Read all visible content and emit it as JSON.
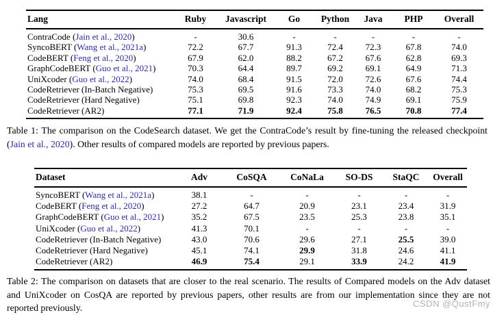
{
  "colors": {
    "citation_blue": "#2b2b9e",
    "text": "#000000",
    "watermark_gray": "#b3b3b3"
  },
  "table1": {
    "columns": [
      "Lang",
      "Ruby",
      "Javascript",
      "Go",
      "Python",
      "Java",
      "PHP",
      "Overall"
    ],
    "rows": [
      {
        "label_prefix": "ContraCode (",
        "label_cite": "Jain et al., 2020",
        "label_suffix": ")",
        "values": [
          "-",
          "30.6",
          "-",
          "-",
          "-",
          "-",
          "-"
        ],
        "bold": [
          false,
          false,
          false,
          false,
          false,
          false,
          false
        ]
      },
      {
        "label_prefix": "SyncoBERT (",
        "label_cite": "Wang et al., 2021a",
        "label_suffix": ")",
        "values": [
          "72.2",
          "67.7",
          "91.3",
          "72.4",
          "72.3",
          "67.8",
          "74.0"
        ],
        "bold": [
          false,
          false,
          false,
          false,
          false,
          false,
          false
        ]
      },
      {
        "label_prefix": "CodeBERT (",
        "label_cite": "Feng et al., 2020",
        "label_suffix": ")",
        "values": [
          "67.9",
          "62.0",
          "88.2",
          "67.2",
          "67.6",
          "62.8",
          "69.3"
        ],
        "bold": [
          false,
          false,
          false,
          false,
          false,
          false,
          false
        ]
      },
      {
        "label_prefix": "GraphCodeBERT (",
        "label_cite": "Guo et al., 2021",
        "label_suffix": ")",
        "values": [
          "70.3",
          "64.4",
          "89.7",
          "69.2",
          "69.1",
          "64.9",
          "71.3"
        ],
        "bold": [
          false,
          false,
          false,
          false,
          false,
          false,
          false
        ]
      },
      {
        "label_prefix": "UniXcoder (",
        "label_cite": "Guo et al., 2022",
        "label_suffix": ")",
        "values": [
          "74.0",
          "68.4",
          "91.5",
          "72.0",
          "72.6",
          "67.6",
          "74.4"
        ],
        "bold": [
          false,
          false,
          false,
          false,
          false,
          false,
          false
        ]
      },
      {
        "label_prefix": "CodeRetriever (In-Batch Negative)",
        "label_cite": "",
        "label_suffix": "",
        "values": [
          "75.3",
          "69.5",
          "91.6",
          "73.3",
          "74.0",
          "68.2",
          "75.3"
        ],
        "bold": [
          false,
          false,
          false,
          false,
          false,
          false,
          false
        ]
      },
      {
        "label_prefix": "CodeRetriever (Hard Negative)",
        "label_cite": "",
        "label_suffix": "",
        "values": [
          "75.1",
          "69.8",
          "92.3",
          "74.0",
          "74.9",
          "69.1",
          "75.9"
        ],
        "bold": [
          false,
          false,
          false,
          false,
          false,
          false,
          false
        ]
      },
      {
        "label_prefix": "CodeRetriever (AR2)",
        "label_cite": "",
        "label_suffix": "",
        "values": [
          "77.1",
          "71.9",
          "92.4",
          "75.8",
          "76.5",
          "70.8",
          "77.4"
        ],
        "bold": [
          true,
          true,
          true,
          true,
          true,
          true,
          true
        ]
      }
    ]
  },
  "caption1": {
    "parts": [
      {
        "type": "text",
        "text": "Table 1: The comparison on the CodeSearch dataset.  We get the ContraCode’s result by fine-tuning the released checkpoint ("
      },
      {
        "type": "cite",
        "text": "Jain et al., 2020"
      },
      {
        "type": "text",
        "text": "). Other results of compared models are reported by previous papers."
      }
    ]
  },
  "table2": {
    "columns": [
      "Dataset",
      "Adv",
      "CoSQA",
      "CoNaLa",
      "SO-DS",
      "StaQC",
      "Overall"
    ],
    "rows": [
      {
        "label_prefix": "SyncoBERT (",
        "label_cite": "Wang et al., 2021a",
        "label_suffix": ")",
        "values": [
          "38.1",
          "-",
          "-",
          "-",
          "-",
          "-"
        ],
        "bold": [
          false,
          false,
          false,
          false,
          false,
          false
        ]
      },
      {
        "label_prefix": "CodeBERT (",
        "label_cite": "Feng et al., 2020",
        "label_suffix": ")",
        "values": [
          "27.2",
          "64.7",
          "20.9",
          "23.1",
          "23.4",
          "31.9"
        ],
        "bold": [
          false,
          false,
          false,
          false,
          false,
          false
        ]
      },
      {
        "label_prefix": "GraphCodeBERT (",
        "label_cite": "Guo et al., 2021",
        "label_suffix": ")",
        "values": [
          "35.2",
          "67.5",
          "23.5",
          "25.3",
          "23.8",
          "35.1"
        ],
        "bold": [
          false,
          false,
          false,
          false,
          false,
          false
        ]
      },
      {
        "label_prefix": "UniXcoder (",
        "label_cite": "Guo et al., 2022",
        "label_suffix": ")",
        "values": [
          "41.3",
          "70.1",
          "-",
          "-",
          "-",
          "-"
        ],
        "bold": [
          false,
          false,
          false,
          false,
          false,
          false
        ]
      },
      {
        "label_prefix": "CodeRetriever (In-Batch Negative)",
        "label_cite": "",
        "label_suffix": "",
        "values": [
          "43.0",
          "70.6",
          "29.6",
          "27.1",
          "25.5",
          "39.0"
        ],
        "bold": [
          false,
          false,
          false,
          false,
          true,
          false
        ]
      },
      {
        "label_prefix": "CodeRetriever (Hard Negative)",
        "label_cite": "",
        "label_suffix": "",
        "values": [
          "45.1",
          "74.1",
          "29.9",
          "31.8",
          "24.6",
          "41.1"
        ],
        "bold": [
          false,
          false,
          true,
          false,
          false,
          false
        ]
      },
      {
        "label_prefix": "CodeRetriever (AR2)",
        "label_cite": "",
        "label_suffix": "",
        "values": [
          "46.9",
          "75.4",
          "29.1",
          "33.9",
          "24.2",
          "41.9"
        ],
        "bold": [
          true,
          true,
          false,
          true,
          false,
          true
        ]
      }
    ]
  },
  "caption2": {
    "parts": [
      {
        "type": "text",
        "text": "Table 2: The comparison on datasets that are closer to the real scenario.  The results of Compared models on the Adv dataset and UniXcoder on CosQA are reported by previous papers, other results are from our implementation since they are not reported previously."
      }
    ]
  },
  "watermark": "CSDN @QustFmy"
}
